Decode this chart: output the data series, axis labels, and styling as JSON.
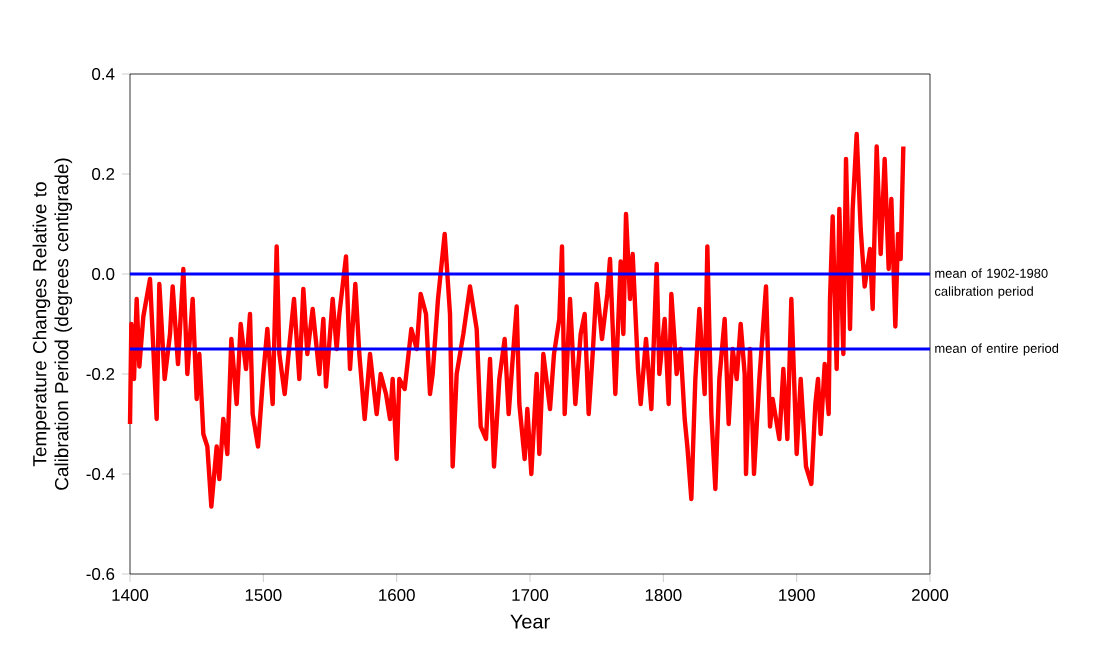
{
  "chart_data": {
    "type": "line",
    "xlabel": "Year",
    "ylabel": "Temperature Changes Relative to Calibration Period (degrees centigrade)",
    "xlim": [
      1400,
      2000
    ],
    "ylim": [
      -0.6,
      0.4
    ],
    "xticks": [
      1400,
      1500,
      1600,
      1700,
      1800,
      1900,
      2000
    ],
    "yticks": [
      {
        "value": -0.6,
        "label": "-0.6"
      },
      {
        "value": -0.4,
        "label": "-0.4"
      },
      {
        "value": -0.2,
        "label": "-0.2"
      },
      {
        "value": 0,
        "label": "0.0"
      },
      {
        "value": 0.2,
        "label": "0.2"
      },
      {
        "value": 0.4,
        "label": "0.4"
      }
    ],
    "grid": false,
    "marker": "none",
    "line_style": "solid",
    "ref_lines": [
      {
        "axis": "y",
        "value": 0,
        "label": "mean of 1902-1980 calibration period",
        "color": "#0000ff"
      },
      {
        "axis": "y",
        "value": -0.15,
        "label": "mean of entire period",
        "color": "#0000ff"
      }
    ],
    "series": [
      {
        "color": "#ff0000",
        "x": [
          1400,
          1401,
          1403,
          1405,
          1407,
          1410,
          1415,
          1420,
          1422,
          1426,
          1430,
          1432,
          1436,
          1440,
          1443,
          1447,
          1450,
          1452,
          1455,
          1458,
          1461,
          1465,
          1467,
          1470,
          1473,
          1476,
          1480,
          1483,
          1487,
          1490,
          1492,
          1496,
          1500,
          1503,
          1507,
          1510,
          1512,
          1516,
          1520,
          1523,
          1527,
          1530,
          1533,
          1537,
          1542,
          1545,
          1547,
          1552,
          1555,
          1557,
          1562,
          1565,
          1569,
          1572,
          1576,
          1580,
          1585,
          1588,
          1592,
          1595,
          1597,
          1600,
          1602,
          1606,
          1611,
          1615,
          1618,
          1622,
          1625,
          1627,
          1631,
          1636,
          1640,
          1642,
          1645,
          1650,
          1655,
          1660,
          1663,
          1667,
          1670,
          1673,
          1677,
          1681,
          1684,
          1687,
          1690,
          1692,
          1696,
          1698,
          1701,
          1705,
          1707,
          1710,
          1715,
          1718,
          1722,
          1724,
          1726,
          1730,
          1734,
          1738,
          1741,
          1744,
          1747,
          1750,
          1754,
          1758,
          1760,
          1764,
          1768,
          1770,
          1772,
          1775,
          1777,
          1781,
          1783,
          1787,
          1791,
          1795,
          1797,
          1801,
          1804,
          1806,
          1810,
          1813,
          1816,
          1818,
          1821,
          1824,
          1827,
          1831,
          1833,
          1836,
          1839,
          1842,
          1846,
          1849,
          1852,
          1855,
          1858,
          1861,
          1862,
          1865,
          1868,
          1872,
          1877,
          1880,
          1882,
          1887,
          1890,
          1893,
          1896,
          1900,
          1903,
          1907,
          1911,
          1914,
          1916,
          1918,
          1921,
          1924,
          1925,
          1927,
          1930,
          1932,
          1935,
          1937,
          1940,
          1942,
          1945,
          1948,
          1951,
          1955,
          1957,
          1960,
          1963,
          1966,
          1969,
          1971,
          1974,
          1976,
          1978,
          1980
        ],
        "values": [
          -0.3,
          -0.1,
          -0.21,
          -0.05,
          -0.185,
          -0.085,
          -0.01,
          -0.29,
          -0.02,
          -0.21,
          -0.12,
          -0.025,
          -0.18,
          0.01,
          -0.2,
          -0.05,
          -0.25,
          -0.16,
          -0.32,
          -0.345,
          -0.465,
          -0.345,
          -0.41,
          -0.29,
          -0.36,
          -0.13,
          -0.26,
          -0.1,
          -0.19,
          -0.08,
          -0.28,
          -0.345,
          -0.2,
          -0.11,
          -0.26,
          0.055,
          -0.16,
          -0.24,
          -0.13,
          -0.05,
          -0.21,
          -0.03,
          -0.16,
          -0.07,
          -0.2,
          -0.09,
          -0.225,
          -0.05,
          -0.15,
          -0.08,
          0.035,
          -0.19,
          -0.02,
          -0.16,
          -0.29,
          -0.16,
          -0.28,
          -0.2,
          -0.24,
          -0.29,
          -0.21,
          -0.37,
          -0.21,
          -0.23,
          -0.11,
          -0.15,
          -0.04,
          -0.08,
          -0.24,
          -0.2,
          -0.05,
          0.08,
          -0.08,
          -0.385,
          -0.2,
          -0.12,
          -0.025,
          -0.11,
          -0.305,
          -0.33,
          -0.17,
          -0.385,
          -0.21,
          -0.13,
          -0.28,
          -0.17,
          -0.065,
          -0.26,
          -0.37,
          -0.27,
          -0.4,
          -0.2,
          -0.36,
          -0.16,
          -0.27,
          -0.16,
          -0.09,
          0.055,
          -0.28,
          -0.05,
          -0.26,
          -0.12,
          -0.08,
          -0.28,
          -0.16,
          -0.02,
          -0.13,
          -0.04,
          0.03,
          -0.24,
          0.025,
          -0.12,
          0.12,
          -0.05,
          0.04,
          -0.19,
          -0.26,
          -0.13,
          -0.27,
          0.02,
          -0.2,
          -0.09,
          -0.26,
          -0.04,
          -0.2,
          -0.15,
          -0.29,
          -0.345,
          -0.45,
          -0.21,
          -0.07,
          -0.24,
          0.055,
          -0.28,
          -0.43,
          -0.21,
          -0.09,
          -0.3,
          -0.15,
          -0.21,
          -0.1,
          -0.2,
          -0.4,
          -0.15,
          -0.4,
          -0.21,
          -0.025,
          -0.305,
          -0.25,
          -0.33,
          -0.19,
          -0.33,
          -0.05,
          -0.36,
          -0.21,
          -0.385,
          -0.42,
          -0.26,
          -0.21,
          -0.32,
          -0.18,
          -0.28,
          -0.05,
          0.115,
          -0.19,
          0.13,
          -0.16,
          0.23,
          -0.11,
          0.13,
          0.28,
          0.09,
          -0.025,
          0.05,
          -0.07,
          0.255,
          0.04,
          0.23,
          0.01,
          0.15,
          -0.105,
          0.08,
          0.03,
          0.255
        ]
      }
    ]
  }
}
